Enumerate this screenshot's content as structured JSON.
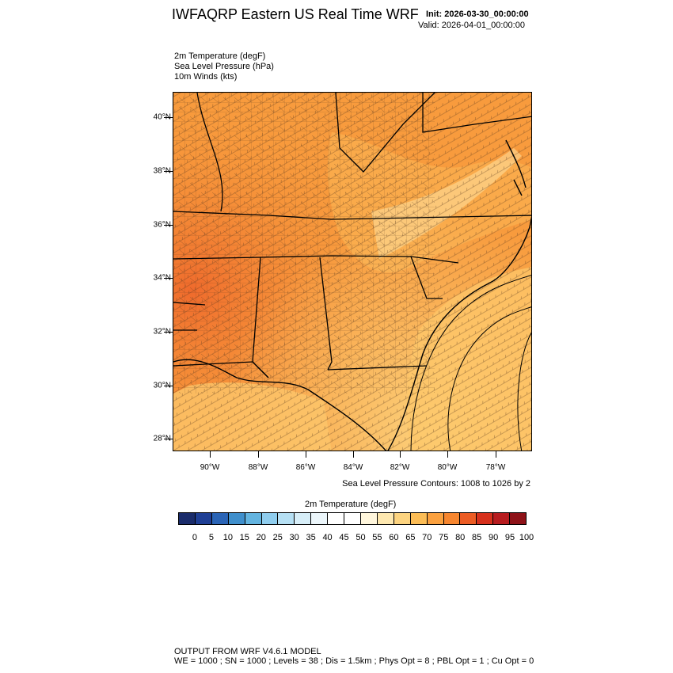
{
  "header": {
    "title": "IWFAQRP Eastern US Real Time WRF",
    "init": "Init: 2026-03-30_00:00:00",
    "valid": "Valid: 2026-04-01_00:00:00"
  },
  "fields": [
    "2m Temperature   (degF)",
    "Sea Level Pressure   (hPa)",
    "10m Winds   (kts)"
  ],
  "map": {
    "lat_labels": [
      "40°N",
      "38°N",
      "36°N",
      "34°N",
      "32°N",
      "30°N",
      "28°N"
    ],
    "lon_labels": [
      "90°W",
      "88°W",
      "86°W",
      "84°W",
      "82°W",
      "80°W",
      "78°W"
    ],
    "contour_note": "Sea Level Pressure Contours: 1008 to 1026 by 2",
    "state_border_color": "#000000",
    "county_border_color": "#5a3a20"
  },
  "colorbar": {
    "title": "2m Temperature  (degF)",
    "labels": [
      "0",
      "5",
      "10",
      "15",
      "20",
      "25",
      "30",
      "35",
      "40",
      "45",
      "50",
      "55",
      "60",
      "65",
      "70",
      "75",
      "80",
      "85",
      "90",
      "95",
      "100"
    ],
    "colors": [
      "#1a2c6b",
      "#1f3f95",
      "#2a64b6",
      "#3f8fcc",
      "#63b4e0",
      "#8fcdee",
      "#b6e0f4",
      "#d7eef8",
      "#ecf6fb",
      "#ffffff",
      "#ffffff",
      "#fff6dc",
      "#fee8b0",
      "#fdd480",
      "#fcbd56",
      "#fba13f",
      "#f7862f",
      "#ec5c24",
      "#d6301c",
      "#b71c1f",
      "#8e1218"
    ]
  },
  "footer": {
    "line1": "OUTPUT FROM WRF V4.6.1 MODEL",
    "line2": "WE = 1000 ; SN = 1000 ; Levels = 38 ; Dis = 1.5km ; Phys Opt = 8 ; PBL Opt = 1 ; Cu Opt = 0"
  }
}
